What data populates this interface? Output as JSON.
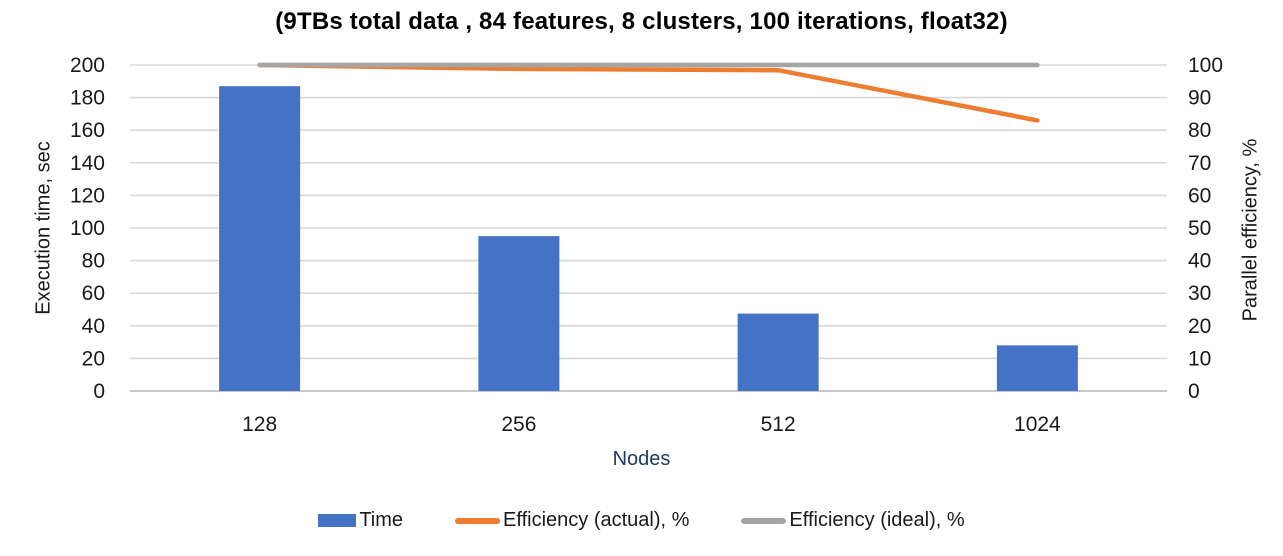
{
  "chart_data": {
    "type": "bar",
    "title": "(9TBs total data , 84 features, 8 clusters, 100 iterations, float32)",
    "xlabel": "Nodes",
    "categories": [
      "128",
      "256",
      "512",
      "1024"
    ],
    "series": [
      {
        "name": "Time",
        "type": "bar",
        "axis": "left",
        "color": "#4472C4",
        "values": [
          187,
          95,
          47.5,
          28
        ]
      },
      {
        "name": "Efficiency (actual), %",
        "type": "line",
        "axis": "right",
        "color": "#ED7D31",
        "values": [
          100,
          98.8,
          98.4,
          83
        ]
      },
      {
        "name": "Efficiency (ideal), %",
        "type": "line",
        "axis": "right",
        "color": "#A5A5A5",
        "values": [
          100,
          100,
          100,
          100
        ]
      }
    ],
    "left_axis": {
      "label": "Execution time, sec",
      "min": 0,
      "max": 200,
      "step": 20
    },
    "right_axis": {
      "label": "Parallel efficiency, %",
      "min": 0,
      "max": 100,
      "step": 10
    },
    "grid": true,
    "legend_position": "bottom",
    "colors": {
      "gridline": "#D9D9D9",
      "axis_line": "#BFBFBF",
      "tick_text": "#1a1a1a",
      "x_axis_title_text": "#203864",
      "title_text": "#000000"
    }
  }
}
